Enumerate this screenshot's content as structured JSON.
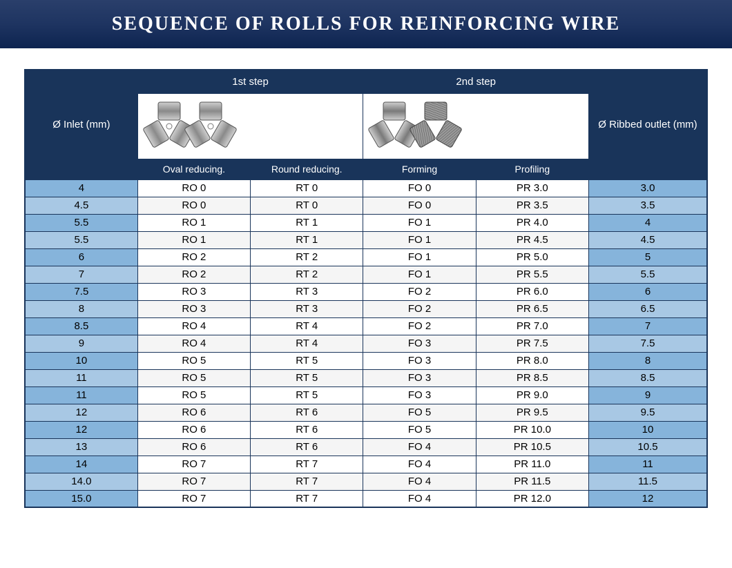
{
  "title": "SEQUENCE OF ROLLS FOR REINFORCING WIRE",
  "header": {
    "inlet": "Ø Inlet (mm)",
    "step1": "1st step",
    "step2": "2nd step",
    "outlet": "Ø Ribbed outlet (mm)",
    "oval": "Oval reducing.",
    "round": "Round reducing.",
    "forming": "Forming",
    "profiling": "Profiling"
  },
  "colors": {
    "dark_header": "#19345a",
    "blue_row_a": "#86b4db",
    "blue_row_b": "#a8c8e4",
    "title_grad_top": "#2a3f6b",
    "title_grad_bot": "#0d2450"
  },
  "rows": [
    {
      "inlet": "4",
      "oval": "RO 0",
      "round": "RT 0",
      "form": "FO 0",
      "prof": "PR 3.0",
      "out": "3.0"
    },
    {
      "inlet": "4.5",
      "oval": "RO 0",
      "round": "RT 0",
      "form": "FO 0",
      "prof": "PR 3.5",
      "out": "3.5"
    },
    {
      "inlet": "5.5",
      "oval": "RO 1",
      "round": "RT 1",
      "form": "FO 1",
      "prof": "PR 4.0",
      "out": "4"
    },
    {
      "inlet": "5.5",
      "oval": "RO 1",
      "round": "RT 1",
      "form": "FO 1",
      "prof": "PR 4.5",
      "out": "4.5"
    },
    {
      "inlet": "6",
      "oval": "RO 2",
      "round": "RT 2",
      "form": "FO 1",
      "prof": "PR 5.0",
      "out": "5"
    },
    {
      "inlet": "7",
      "oval": "RO 2",
      "round": "RT 2",
      "form": "FO 1",
      "prof": "PR 5.5",
      "out": "5.5"
    },
    {
      "inlet": "7.5",
      "oval": "RO 3",
      "round": "RT 3",
      "form": "FO 2",
      "prof": "PR 6.0",
      "out": "6"
    },
    {
      "inlet": "8",
      "oval": "RO 3",
      "round": "RT 3",
      "form": "FO 2",
      "prof": "PR 6.5",
      "out": "6.5"
    },
    {
      "inlet": "8.5",
      "oval": "RO 4",
      "round": "RT 4",
      "form": "FO 2",
      "prof": "PR 7.0",
      "out": "7"
    },
    {
      "inlet": "9",
      "oval": "RO 4",
      "round": "RT 4",
      "form": "FO 3",
      "prof": "PR 7.5",
      "out": "7.5"
    },
    {
      "inlet": "10",
      "oval": "RO 5",
      "round": "RT 5",
      "form": "FO 3",
      "prof": "PR 8.0",
      "out": "8"
    },
    {
      "inlet": "11",
      "oval": "RO 5",
      "round": "RT 5",
      "form": "FO 3",
      "prof": "PR 8.5",
      "out": "8.5"
    },
    {
      "inlet": "11",
      "oval": "RO 5",
      "round": "RT 5",
      "form": "FO 3",
      "prof": "PR 9.0",
      "out": "9"
    },
    {
      "inlet": "12",
      "oval": "RO 6",
      "round": "RT 6",
      "form": "FO 5",
      "prof": "PR 9.5",
      "out": "9.5"
    },
    {
      "inlet": "12",
      "oval": "RO 6",
      "round": "RT 6",
      "form": "FO 5",
      "prof": "PR 10.0",
      "out": "10"
    },
    {
      "inlet": "13",
      "oval": "RO 6",
      "round": "RT 6",
      "form": "FO 4",
      "prof": "PR 10.5",
      "out": "10.5"
    },
    {
      "inlet": "14",
      "oval": "RO 7",
      "round": "RT 7",
      "form": "FO 4",
      "prof": "PR 11.0",
      "out": "11"
    },
    {
      "inlet": "14.0",
      "oval": "RO 7",
      "round": "RT 7",
      "form": "FO 4",
      "prof": "PR 11.5",
      "out": "11.5"
    },
    {
      "inlet": "15.0",
      "oval": "RO 7",
      "round": "RT 7",
      "form": "FO 4",
      "prof": "PR 12.0",
      "out": "12"
    }
  ]
}
